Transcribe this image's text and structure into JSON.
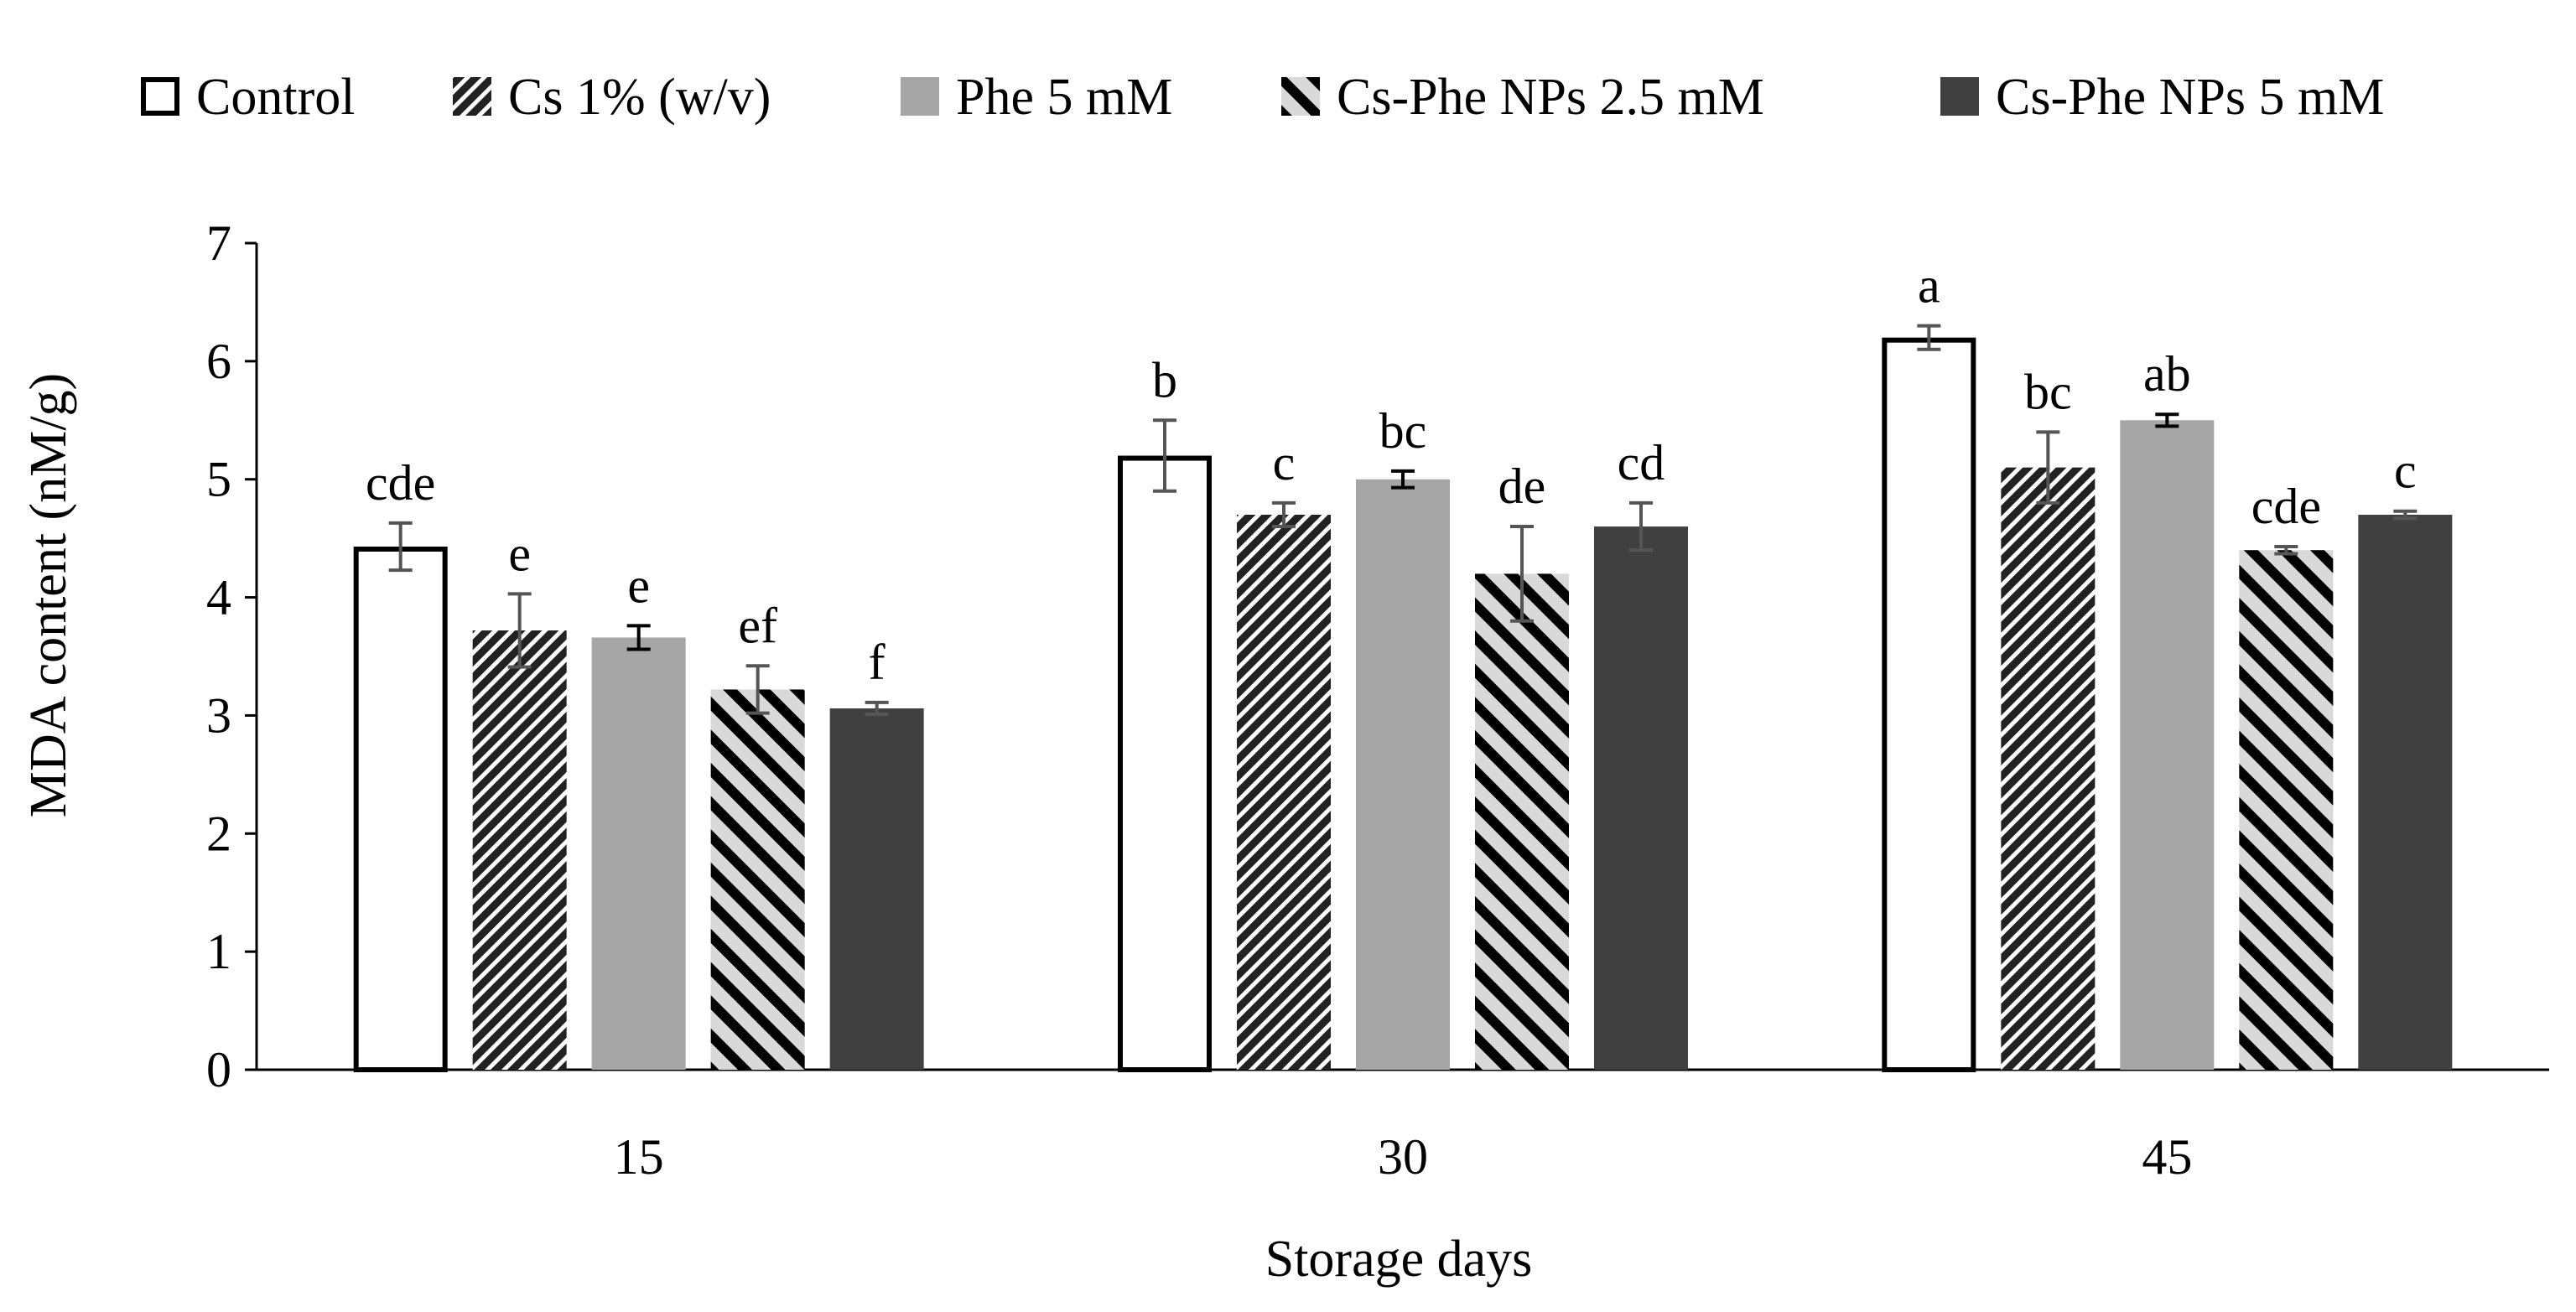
{
  "chart_data": {
    "type": "bar",
    "title": "",
    "xlabel": "Storage days",
    "ylabel": "MDA content (nM/g)",
    "ylim": [
      0,
      7
    ],
    "yticks": [
      "0",
      "1",
      "2",
      "3",
      "4",
      "5",
      "6",
      "7"
    ],
    "categories": [
      "15",
      "30",
      "45"
    ],
    "legend_position": "top",
    "grid": false,
    "series": [
      {
        "name": "Control",
        "fill": "#ffffff",
        "stroke": "#000000",
        "pattern": "none",
        "values": [
          4.43,
          5.2,
          6.2
        ],
        "errors": [
          0.2,
          0.3,
          0.1
        ],
        "letters": [
          "cde",
          "b",
          "a"
        ]
      },
      {
        "name": "Cs 1% (w/v)",
        "fill": "#222222",
        "stroke": "none",
        "pattern": "dense-diagonal",
        "values": [
          3.72,
          4.7,
          5.1
        ],
        "errors": [
          0.31,
          0.1,
          0.3
        ],
        "letters": [
          "e",
          "c",
          "bc"
        ]
      },
      {
        "name": "Phe 5 mM",
        "fill": "#a6a6a6",
        "stroke": "none",
        "pattern": "none",
        "values": [
          3.66,
          5.0,
          5.5
        ],
        "errors": [
          0.1,
          0.07,
          0.05
        ],
        "letters": [
          "e",
          "bc",
          "ab"
        ]
      },
      {
        "name": "Cs-Phe NPs 2.5 mM",
        "fill": "#d9d9d9",
        "stroke": "none",
        "pattern": "wide-diagonal",
        "values": [
          3.22,
          4.2,
          4.4
        ],
        "errors": [
          0.2,
          0.4,
          0.03
        ],
        "letters": [
          "ef",
          "de",
          "cde"
        ]
      },
      {
        "name": "Cs-Phe NPs 5 mM",
        "fill": "#404040",
        "stroke": "none",
        "pattern": "none",
        "values": [
          3.06,
          4.6,
          4.7
        ],
        "errors": [
          0.05,
          0.2,
          0.03
        ],
        "letters": [
          "f",
          "cd",
          "c"
        ]
      }
    ]
  }
}
